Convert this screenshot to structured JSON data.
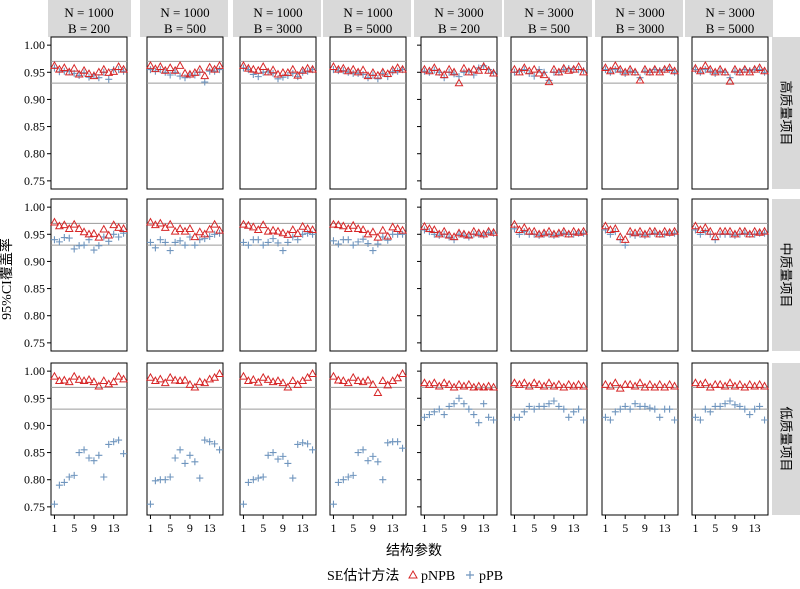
{
  "chart_data": {
    "type": "scatter",
    "ylabel": "95%CI覆盖率",
    "xlabel": "结构参数",
    "ylim": [
      0.735,
      1.015
    ],
    "yticks": [
      0.75,
      0.8,
      0.85,
      0.9,
      0.95,
      1.0
    ],
    "ytick_labels": [
      "0.75",
      "0.80",
      "0.85",
      "0.90",
      "0.95",
      "1.00"
    ],
    "xlim": [
      0.3,
      15.7
    ],
    "xticks": [
      1,
      5,
      9,
      13
    ],
    "xtick_labels": [
      "1",
      "5",
      "9",
      "13"
    ],
    "reference_lines": [
      0.93,
      0.97
    ],
    "columns": [
      {
        "n": "N = 1000",
        "b": "B = 200"
      },
      {
        "n": "N = 1000",
        "b": "B = 500"
      },
      {
        "n": "N = 1000",
        "b": "B = 3000"
      },
      {
        "n": "N = 1000",
        "b": "B = 5000"
      },
      {
        "n": "N = 3000",
        "b": "B = 200"
      },
      {
        "n": "N = 3000",
        "b": "B = 500"
      },
      {
        "n": "N = 3000",
        "b": "B = 3000"
      },
      {
        "n": "N = 3000",
        "b": "B = 5000"
      }
    ],
    "rows": [
      "高质量项目",
      "中质量项目",
      "低质量项目"
    ],
    "legend": {
      "title": "SE估计方法",
      "position": "bottom",
      "entries": [
        {
          "label": "pNPB",
          "marker": "triangle",
          "color": "#d62728"
        },
        {
          "label": "pPB",
          "marker": "plus",
          "color": "#6f95be"
        }
      ]
    },
    "panels": [
      [
        {
          "pNPB": [
            0.962,
            0.955,
            0.958,
            0.95,
            0.957,
            0.946,
            0.953,
            0.947,
            0.943,
            0.95,
            0.955,
            0.949,
            0.951,
            0.96,
            0.955
          ],
          "pPB": [
            0.958,
            0.951,
            0.952,
            0.952,
            0.948,
            0.944,
            0.949,
            0.941,
            0.945,
            0.94,
            0.95,
            0.937,
            0.955,
            0.955,
            0.952
          ]
        },
        {
          "pNPB": [
            0.962,
            0.956,
            0.96,
            0.953,
            0.958,
            0.953,
            0.962,
            0.948,
            0.946,
            0.949,
            0.955,
            0.943,
            0.959,
            0.955,
            0.962
          ],
          "pPB": [
            0.955,
            0.952,
            0.955,
            0.95,
            0.945,
            0.95,
            0.943,
            0.94,
            0.945,
            0.945,
            0.95,
            0.932,
            0.952,
            0.952,
            0.955
          ]
        },
        {
          "pNPB": [
            0.962,
            0.957,
            0.955,
            0.953,
            0.96,
            0.95,
            0.954,
            0.946,
            0.949,
            0.949,
            0.955,
            0.944,
            0.953,
            0.957,
            0.955
          ],
          "pPB": [
            0.958,
            0.955,
            0.946,
            0.942,
            0.95,
            0.951,
            0.948,
            0.938,
            0.941,
            0.944,
            0.948,
            0.942,
            0.95,
            0.952,
            0.955
          ]
        },
        {
          "pNPB": [
            0.96,
            0.955,
            0.957,
            0.952,
            0.955,
            0.95,
            0.954,
            0.943,
            0.949,
            0.944,
            0.95,
            0.947,
            0.954,
            0.958,
            0.955
          ],
          "pPB": [
            0.955,
            0.953,
            0.953,
            0.95,
            0.948,
            0.948,
            0.946,
            0.94,
            0.945,
            0.938,
            0.948,
            0.942,
            0.951,
            0.952,
            0.955
          ]
        }
      ],
      [
        {
          "pNPB": [
            0.972,
            0.965,
            0.967,
            0.96,
            0.968,
            0.96,
            0.954,
            0.95,
            0.951,
            0.944,
            0.959,
            0.948,
            0.967,
            0.962,
            0.96
          ],
          "pPB": [
            0.94,
            0.936,
            0.944,
            0.943,
            0.923,
            0.929,
            0.93,
            0.94,
            0.921,
            0.929,
            0.945,
            0.937,
            0.95,
            0.945,
            0.952
          ]
        },
        {
          "pNPB": [
            0.972,
            0.967,
            0.97,
            0.962,
            0.968,
            0.955,
            0.96,
            0.955,
            0.96,
            0.945,
            0.954,
            0.95,
            0.959,
            0.968,
            0.957
          ],
          "pPB": [
            0.935,
            0.925,
            0.94,
            0.935,
            0.92,
            0.935,
            0.938,
            0.93,
            0.945,
            0.93,
            0.94,
            0.942,
            0.946,
            0.95,
            0.952
          ]
        },
        {
          "pNPB": [
            0.968,
            0.966,
            0.963,
            0.958,
            0.967,
            0.955,
            0.957,
            0.955,
            0.952,
            0.949,
            0.958,
            0.951,
            0.964,
            0.96,
            0.958
          ],
          "pPB": [
            0.935,
            0.93,
            0.94,
            0.94,
            0.93,
            0.935,
            0.942,
            0.934,
            0.92,
            0.935,
            0.945,
            0.94,
            0.95,
            0.952,
            0.95
          ]
        },
        {
          "pNPB": [
            0.968,
            0.967,
            0.965,
            0.96,
            0.966,
            0.96,
            0.958,
            0.95,
            0.954,
            0.944,
            0.957,
            0.946,
            0.963,
            0.96,
            0.957
          ],
          "pPB": [
            0.938,
            0.932,
            0.94,
            0.94,
            0.93,
            0.936,
            0.941,
            0.933,
            0.92,
            0.932,
            0.945,
            0.939,
            0.95,
            0.95,
            0.95
          ]
        }
      ],
      [
        {
          "pNPB": [
            0.99,
            0.982,
            0.983,
            0.98,
            0.99,
            0.984,
            0.982,
            0.984,
            0.98,
            0.972,
            0.982,
            0.976,
            0.98,
            0.99,
            0.985
          ],
          "pPB": [
            0.755,
            0.79,
            0.795,
            0.805,
            0.808,
            0.85,
            0.855,
            0.84,
            0.835,
            0.845,
            0.805,
            0.865,
            0.87,
            0.873,
            0.848
          ]
        },
        {
          "pNPB": [
            0.988,
            0.982,
            0.985,
            0.978,
            0.988,
            0.983,
            0.982,
            0.983,
            0.975,
            0.97,
            0.98,
            0.978,
            0.985,
            0.988,
            0.995
          ],
          "pPB": [
            0.755,
            0.798,
            0.8,
            0.8,
            0.805,
            0.84,
            0.855,
            0.83,
            0.845,
            0.833,
            0.803,
            0.873,
            0.87,
            0.866,
            0.855
          ]
        },
        {
          "pNPB": [
            0.99,
            0.982,
            0.984,
            0.979,
            0.988,
            0.984,
            0.98,
            0.982,
            0.978,
            0.97,
            0.982,
            0.975,
            0.982,
            0.988,
            0.995
          ],
          "pPB": [
            0.755,
            0.795,
            0.8,
            0.803,
            0.805,
            0.845,
            0.85,
            0.838,
            0.843,
            0.83,
            0.803,
            0.865,
            0.868,
            0.866,
            0.855
          ]
        },
        {
          "pNPB": [
            0.99,
            0.983,
            0.982,
            0.978,
            0.988,
            0.982,
            0.98,
            0.983,
            0.975,
            0.96,
            0.982,
            0.974,
            0.982,
            0.987,
            0.995
          ],
          "pPB": [
            0.755,
            0.795,
            0.8,
            0.805,
            0.808,
            0.85,
            0.855,
            0.835,
            0.843,
            0.833,
            0.8,
            0.868,
            0.87,
            0.87,
            0.858
          ]
        }
      ]
    ],
    "panels_right": [
      [
        {
          "pNPB": [
            0.955,
            0.952,
            0.958,
            0.95,
            0.945,
            0.955,
            0.95,
            0.93,
            0.957,
            0.95,
            0.955,
            0.953,
            0.96,
            0.953,
            0.948
          ],
          "pPB": [
            0.952,
            0.95,
            0.954,
            0.95,
            0.94,
            0.95,
            0.947,
            0.942,
            0.95,
            0.952,
            0.945,
            0.958,
            0.962,
            0.955,
            0.95
          ]
        },
        {
          "pNPB": [
            0.955,
            0.95,
            0.958,
            0.952,
            0.955,
            0.948,
            0.945,
            0.932,
            0.955,
            0.95,
            0.957,
            0.953,
            0.955,
            0.96,
            0.95
          ],
          "pPB": [
            0.95,
            0.952,
            0.955,
            0.948,
            0.943,
            0.955,
            0.95,
            0.935,
            0.95,
            0.95,
            0.955,
            0.957,
            0.955,
            0.955,
            0.953
          ]
        },
        {
          "pNPB": [
            0.958,
            0.952,
            0.962,
            0.955,
            0.95,
            0.955,
            0.95,
            0.935,
            0.955,
            0.95,
            0.955,
            0.95,
            0.955,
            0.958,
            0.952
          ],
          "pPB": [
            0.955,
            0.95,
            0.955,
            0.952,
            0.948,
            0.952,
            0.95,
            0.94,
            0.952,
            0.95,
            0.955,
            0.953,
            0.955,
            0.955,
            0.95
          ]
        },
        {
          "pNPB": [
            0.957,
            0.952,
            0.962,
            0.955,
            0.95,
            0.955,
            0.95,
            0.933,
            0.955,
            0.95,
            0.955,
            0.95,
            0.955,
            0.958,
            0.952
          ],
          "pPB": [
            0.955,
            0.95,
            0.955,
            0.952,
            0.948,
            0.952,
            0.95,
            0.94,
            0.952,
            0.95,
            0.955,
            0.953,
            0.955,
            0.955,
            0.95
          ]
        }
      ],
      [
        {
          "pNPB": [
            0.964,
            0.96,
            0.958,
            0.95,
            0.955,
            0.948,
            0.945,
            0.952,
            0.95,
            0.948,
            0.955,
            0.952,
            0.95,
            0.955,
            0.953
          ],
          "pPB": [
            0.958,
            0.955,
            0.95,
            0.948,
            0.95,
            0.945,
            0.94,
            0.95,
            0.948,
            0.945,
            0.95,
            0.95,
            0.948,
            0.953,
            0.952
          ]
        },
        {
          "pNPB": [
            0.968,
            0.958,
            0.962,
            0.955,
            0.955,
            0.95,
            0.952,
            0.955,
            0.95,
            0.952,
            0.955,
            0.95,
            0.955,
            0.953,
            0.955
          ],
          "pPB": [
            0.96,
            0.95,
            0.955,
            0.95,
            0.95,
            0.948,
            0.95,
            0.95,
            0.948,
            0.95,
            0.952,
            0.95,
            0.95,
            0.952,
            0.952
          ]
        },
        {
          "pNPB": [
            0.965,
            0.958,
            0.96,
            0.945,
            0.94,
            0.955,
            0.952,
            0.955,
            0.95,
            0.955,
            0.955,
            0.95,
            0.955,
            0.953,
            0.955
          ],
          "pPB": [
            0.958,
            0.95,
            0.955,
            0.94,
            0.93,
            0.95,
            0.948,
            0.95,
            0.948,
            0.95,
            0.952,
            0.95,
            0.95,
            0.952,
            0.952
          ]
        },
        {
          "pNPB": [
            0.965,
            0.958,
            0.962,
            0.955,
            0.945,
            0.955,
            0.955,
            0.955,
            0.95,
            0.955,
            0.955,
            0.95,
            0.955,
            0.953,
            0.955
          ],
          "pPB": [
            0.958,
            0.95,
            0.955,
            0.95,
            0.94,
            0.95,
            0.95,
            0.95,
            0.948,
            0.95,
            0.952,
            0.95,
            0.95,
            0.952,
            0.952
          ]
        }
      ],
      [
        {
          "pNPB": [
            0.978,
            0.975,
            0.978,
            0.972,
            0.978,
            0.975,
            0.97,
            0.975,
            0.972,
            0.975,
            0.97,
            0.972,
            0.97,
            0.972,
            0.97
          ],
          "pPB": [
            0.915,
            0.92,
            0.925,
            0.93,
            0.92,
            0.935,
            0.94,
            0.95,
            0.94,
            0.93,
            0.92,
            0.905,
            0.94,
            0.915,
            0.91
          ]
        },
        {
          "pNPB": [
            0.978,
            0.975,
            0.978,
            0.972,
            0.978,
            0.975,
            0.972,
            0.978,
            0.972,
            0.975,
            0.97,
            0.975,
            0.972,
            0.975,
            0.972
          ],
          "pPB": [
            0.915,
            0.915,
            0.925,
            0.935,
            0.93,
            0.935,
            0.935,
            0.94,
            0.945,
            0.935,
            0.93,
            0.915,
            0.925,
            0.93,
            0.91
          ]
        },
        {
          "pNPB": [
            0.975,
            0.972,
            0.978,
            0.968,
            0.975,
            0.975,
            0.972,
            0.978,
            0.97,
            0.975,
            0.97,
            0.975,
            0.97,
            0.975,
            0.972
          ],
          "pPB": [
            0.915,
            0.91,
            0.925,
            0.93,
            0.935,
            0.93,
            0.94,
            0.935,
            0.935,
            0.932,
            0.93,
            0.915,
            0.93,
            0.93,
            0.91
          ]
        },
        {
          "pNPB": [
            0.978,
            0.975,
            0.978,
            0.97,
            0.975,
            0.975,
            0.972,
            0.978,
            0.972,
            0.975,
            0.97,
            0.975,
            0.972,
            0.975,
            0.972
          ],
          "pPB": [
            0.915,
            0.91,
            0.93,
            0.925,
            0.935,
            0.935,
            0.94,
            0.945,
            0.938,
            0.935,
            0.93,
            0.92,
            0.93,
            0.935,
            0.91
          ]
        }
      ]
    ]
  }
}
